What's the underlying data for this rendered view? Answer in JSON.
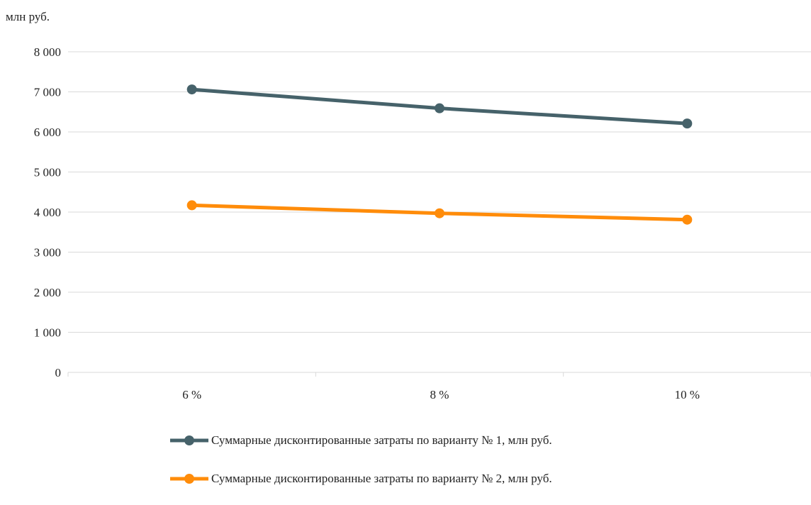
{
  "chart_data": {
    "type": "line",
    "unit_label": "млн руб.",
    "categories": [
      "6 %",
      "8 %",
      "10 %"
    ],
    "y_ticks": [
      "0",
      "1 000",
      "2 000",
      "3 000",
      "4 000",
      "5 000",
      "6 000",
      "7 000",
      "8 000"
    ],
    "ylim": [
      0,
      8000
    ],
    "grid": true,
    "legend_position": "bottom",
    "series": [
      {
        "name": "Суммарные дисконтированные затраты по варианту № 1, млн руб.",
        "values": [
          7060,
          6590,
          6210
        ],
        "color": "#46626a"
      },
      {
        "name": "Суммарные дисконтированные затраты по варианту № 2, млн руб.",
        "values": [
          4170,
          3970,
          3810
        ],
        "color": "#ff8c0a"
      }
    ]
  }
}
